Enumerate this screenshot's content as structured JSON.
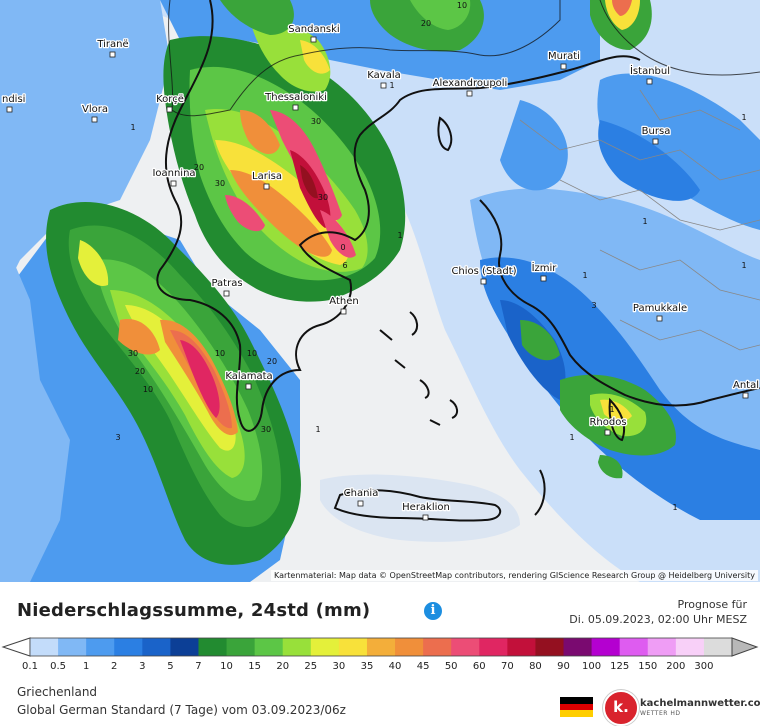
{
  "map": {
    "attribution": "Kartenmaterial: Map data © OpenStreetMap contributors, rendering GIScience Research Group @ Heidelberg University",
    "cities": [
      {
        "name": "Sandanski"
      },
      {
        "name": "Tiranë"
      },
      {
        "name": "Murati"
      },
      {
        "name": "İstanbul"
      },
      {
        "name": "Kavala"
      },
      {
        "name": "Alexandroupoli"
      },
      {
        "name": "Thessaloniki"
      },
      {
        "name": "Korçë"
      },
      {
        "name": "Vlora"
      },
      {
        "name": "ndisi"
      },
      {
        "name": "Bursa"
      },
      {
        "name": "Ioannina"
      },
      {
        "name": "Larisa"
      },
      {
        "name": "Chios (Stadt)"
      },
      {
        "name": "İzmir"
      },
      {
        "name": "Patras"
      },
      {
        "name": "Athen"
      },
      {
        "name": "Pamukkale"
      },
      {
        "name": "Kalamata"
      },
      {
        "name": "Antal"
      },
      {
        "name": "Rhodos"
      },
      {
        "name": "Chania"
      },
      {
        "name": "Heraklion"
      }
    ],
    "contour_labels": [
      "20",
      "10",
      "1",
      "30",
      "1",
      "20",
      "30",
      "30",
      "0",
      "6",
      "10",
      "30",
      "20",
      "10",
      "10",
      "20",
      "30",
      "3",
      "1",
      "1",
      "1",
      "1",
      "3",
      "1",
      "1",
      "1",
      "1",
      "1"
    ]
  },
  "title": "Niederschlagssumme, 24std (mm)",
  "info_icon": "info-icon",
  "forecast": {
    "label": "Prognose für",
    "datetime": "Di. 05.09.2023, 02:00 Uhr MESZ"
  },
  "legend": {
    "ticks": [
      "0.1",
      "0.5",
      "1",
      "2",
      "3",
      "5",
      "7",
      "10",
      "15",
      "20",
      "25",
      "30",
      "35",
      "40",
      "45",
      "50",
      "60",
      "70",
      "80",
      "90",
      "100",
      "125",
      "150",
      "200",
      "300"
    ],
    "colors": [
      "#c3dcfa",
      "#80b8f5",
      "#4d9bef",
      "#2b7fe3",
      "#1a63c9",
      "#0c3f96",
      "#228b30",
      "#3aa43a",
      "#5cc646",
      "#98e03a",
      "#e4f03a",
      "#f8e13a",
      "#f3ae3a",
      "#f08f3a",
      "#ec6e4e",
      "#ec4d76",
      "#e02662",
      "#c2103a",
      "#941020",
      "#7a0a70",
      "#b400d0",
      "#de5cf0",
      "#ef9df5",
      "#f8d0f8",
      "#dcdcdc"
    ]
  },
  "footer": {
    "region": "Griechenland",
    "model": "Global German Standard (7 Tage) vom 03.09.2023/06z",
    "brand": "kachelmannwetter.com",
    "brand_sub": "WETTER HD",
    "logo_letter": "k."
  }
}
